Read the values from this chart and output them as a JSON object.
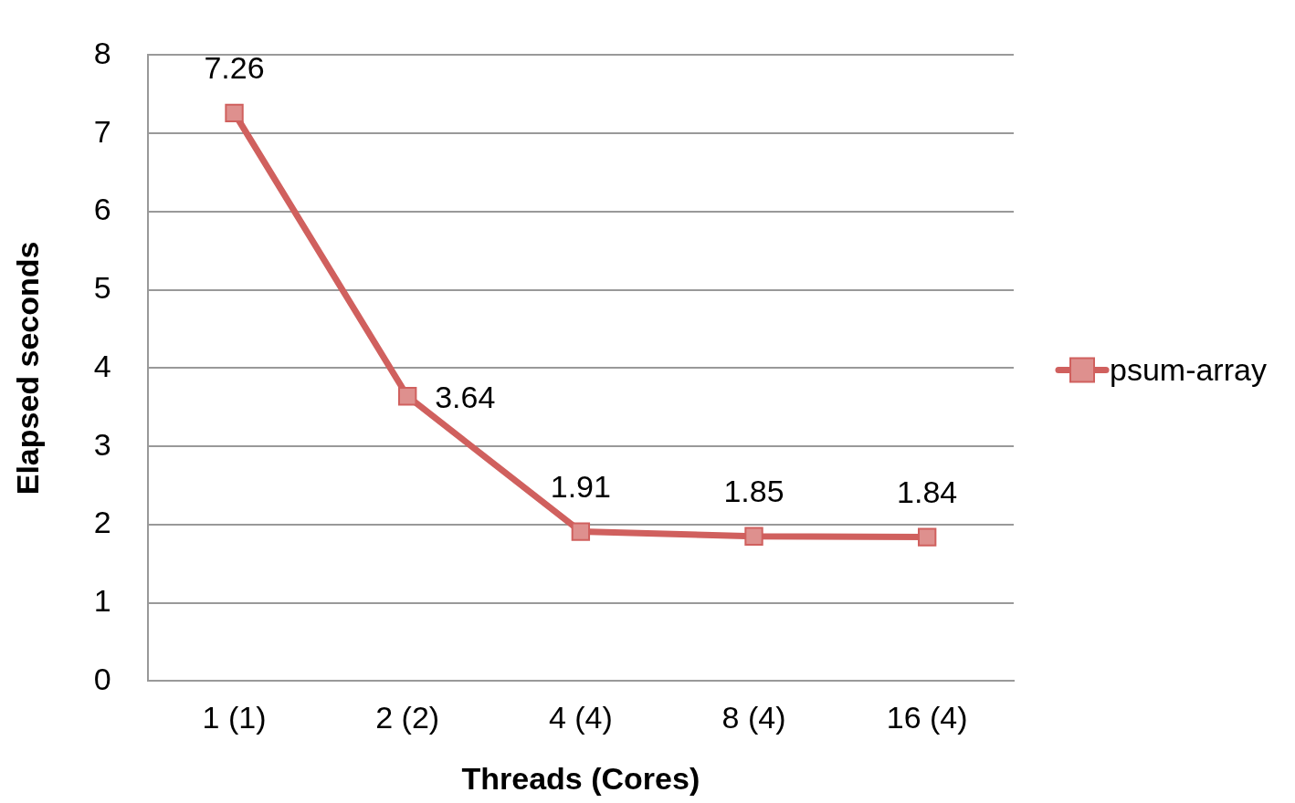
{
  "chart_data": {
    "type": "line",
    "xlabel": "Threads (Cores)",
    "ylabel": "Elapsed seconds",
    "categories": [
      "1 (1)",
      "2 (2)",
      "4 (4)",
      "8 (4)",
      "16 (4)"
    ],
    "series": [
      {
        "name": "psum-array",
        "color": "#d0605e",
        "values": [
          7.26,
          3.64,
          1.91,
          1.85,
          1.84
        ]
      }
    ],
    "ylim": [
      0,
      8
    ],
    "yticks": [
      0,
      1,
      2,
      3,
      4,
      5,
      6,
      7,
      8
    ],
    "grid": "y",
    "legend": "right",
    "marker": "square",
    "data_labels": true
  }
}
